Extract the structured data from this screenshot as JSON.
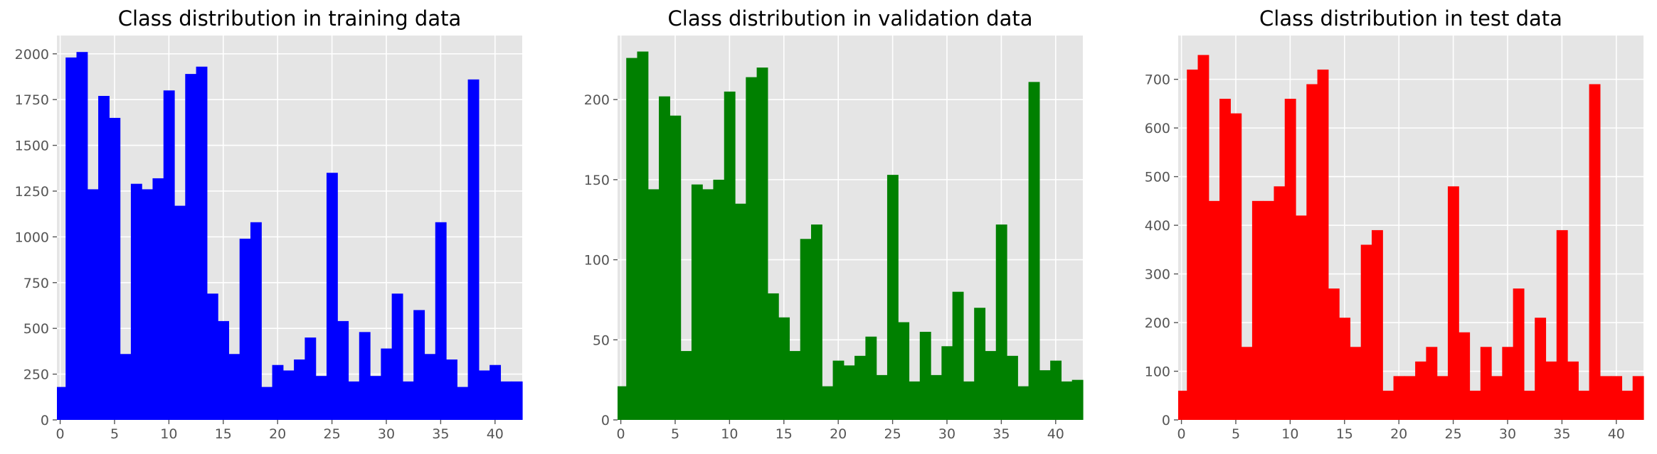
{
  "chart_data": [
    {
      "type": "bar",
      "title": "Class distribution in training data",
      "color": "#0000ff",
      "xlim": [
        -0.3,
        42.5
      ],
      "ylim": [
        0,
        2100
      ],
      "xticks": [
        0,
        5,
        10,
        15,
        20,
        25,
        30,
        35,
        40
      ],
      "yticks": [
        0,
        250,
        500,
        750,
        1000,
        1250,
        1500,
        1750,
        2000
      ],
      "xlabel": "",
      "ylabel": "",
      "grid": true,
      "categories": [
        0,
        1,
        2,
        3,
        4,
        5,
        6,
        7,
        8,
        9,
        10,
        11,
        12,
        13,
        14,
        15,
        16,
        17,
        18,
        19,
        20,
        21,
        22,
        23,
        24,
        25,
        26,
        27,
        28,
        29,
        30,
        31,
        32,
        33,
        34,
        35,
        36,
        37,
        38,
        39,
        40,
        41,
        42
      ],
      "values": [
        180,
        1980,
        2010,
        1260,
        1770,
        1650,
        360,
        1290,
        1260,
        1320,
        1800,
        1170,
        1890,
        1930,
        690,
        540,
        360,
        990,
        1080,
        180,
        300,
        270,
        330,
        450,
        240,
        1350,
        540,
        210,
        480,
        240,
        390,
        690,
        210,
        600,
        360,
        1080,
        330,
        180,
        1860,
        270,
        300,
        210,
        210
      ]
    },
    {
      "type": "bar",
      "title": "Class distribution in validation data",
      "color": "#008000",
      "xlim": [
        -0.3,
        42.5
      ],
      "ylim": [
        0,
        240
      ],
      "xticks": [
        0,
        5,
        10,
        15,
        20,
        25,
        30,
        35,
        40
      ],
      "yticks": [
        0,
        50,
        100,
        150,
        200
      ],
      "xlabel": "",
      "ylabel": "",
      "grid": true,
      "categories": [
        0,
        1,
        2,
        3,
        4,
        5,
        6,
        7,
        8,
        9,
        10,
        11,
        12,
        13,
        14,
        15,
        16,
        17,
        18,
        19,
        20,
        21,
        22,
        23,
        24,
        25,
        26,
        27,
        28,
        29,
        30,
        31,
        32,
        33,
        34,
        35,
        36,
        37,
        38,
        39,
        40,
        41,
        42
      ],
      "values": [
        21,
        226,
        230,
        144,
        202,
        190,
        43,
        147,
        144,
        150,
        205,
        135,
        214,
        220,
        79,
        64,
        43,
        113,
        122,
        21,
        37,
        34,
        40,
        52,
        28,
        153,
        61,
        24,
        55,
        28,
        46,
        80,
        24,
        70,
        43,
        122,
        40,
        21,
        211,
        31,
        37,
        24,
        25
      ]
    },
    {
      "type": "bar",
      "title": "Class distribution in test data",
      "color": "#ff0000",
      "xlim": [
        -0.3,
        42.5
      ],
      "ylim": [
        0,
        790
      ],
      "xticks": [
        0,
        5,
        10,
        15,
        20,
        25,
        30,
        35,
        40
      ],
      "yticks": [
        0,
        100,
        200,
        300,
        400,
        500,
        600,
        700
      ],
      "xlabel": "",
      "ylabel": "",
      "grid": true,
      "categories": [
        0,
        1,
        2,
        3,
        4,
        5,
        6,
        7,
        8,
        9,
        10,
        11,
        12,
        13,
        14,
        15,
        16,
        17,
        18,
        19,
        20,
        21,
        22,
        23,
        24,
        25,
        26,
        27,
        28,
        29,
        30,
        31,
        32,
        33,
        34,
        35,
        36,
        37,
        38,
        39,
        40,
        41,
        42
      ],
      "values": [
        60,
        720,
        750,
        450,
        660,
        630,
        150,
        450,
        450,
        480,
        660,
        420,
        690,
        720,
        270,
        210,
        150,
        360,
        390,
        60,
        90,
        90,
        120,
        150,
        90,
        480,
        180,
        60,
        150,
        90,
        150,
        270,
        60,
        210,
        120,
        390,
        120,
        60,
        690,
        90,
        90,
        60,
        90
      ]
    }
  ]
}
